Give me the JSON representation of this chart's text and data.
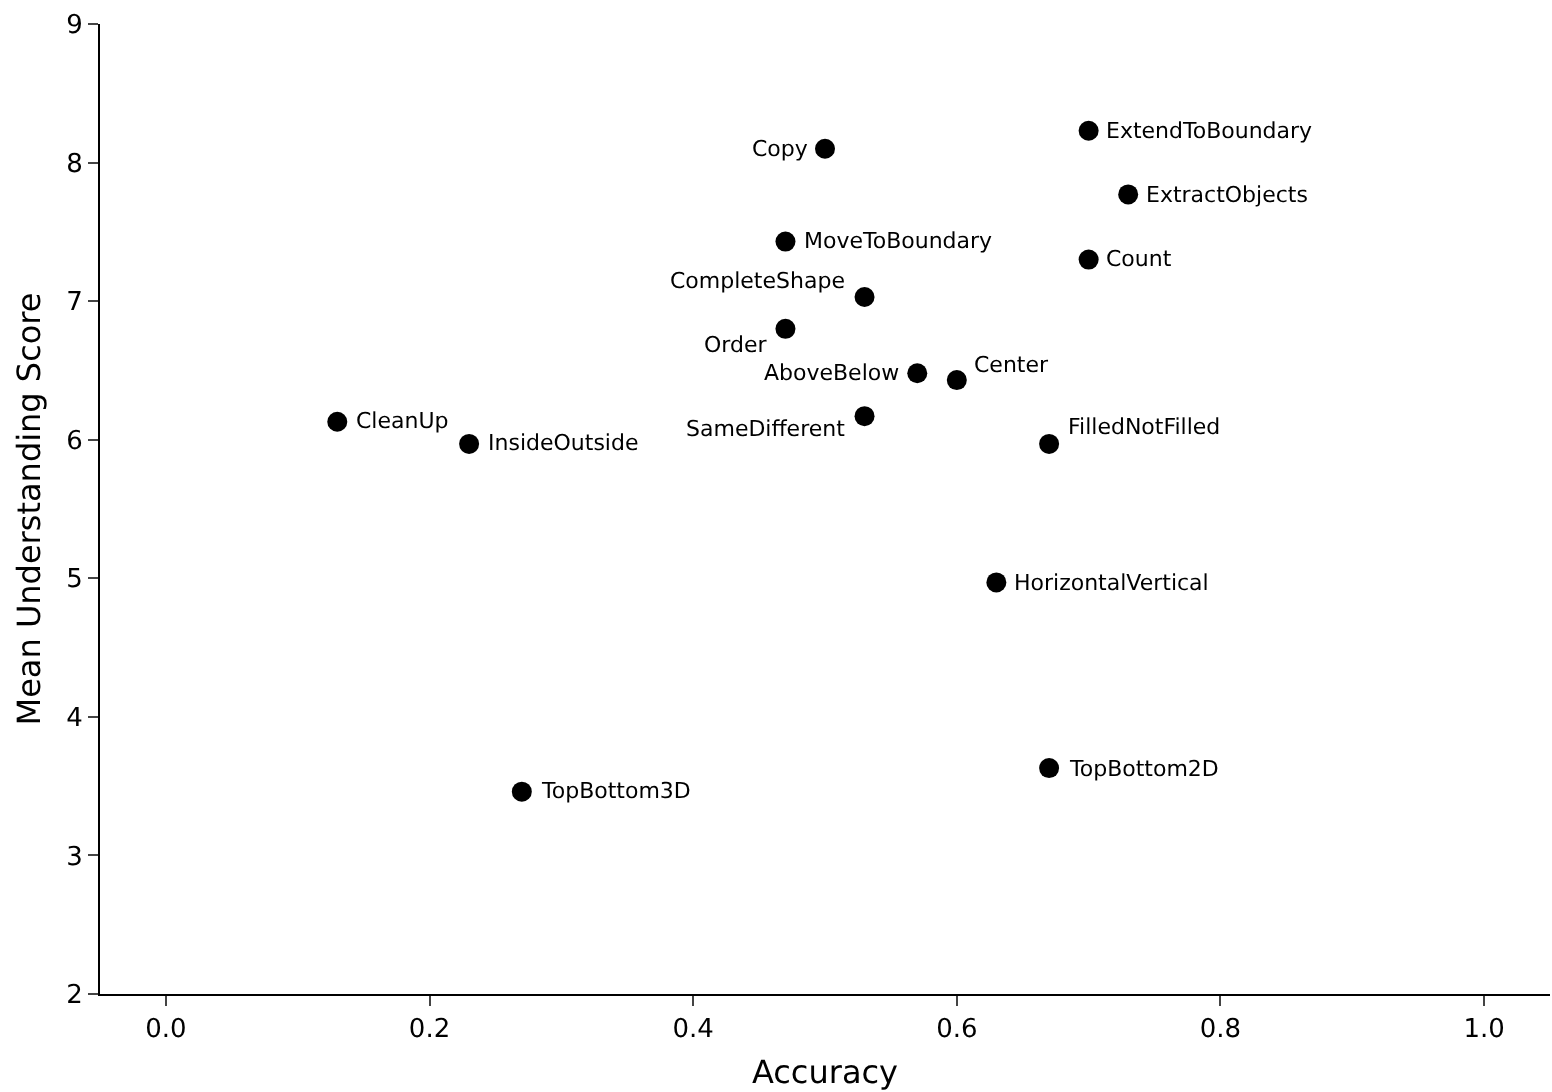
{
  "chart_data": {
    "type": "scatter",
    "xlabel": "Accuracy",
    "ylabel": "Mean Understanding Score",
    "x": [
      0.13,
      0.23,
      0.27,
      0.5,
      0.47,
      0.53,
      0.47,
      0.57,
      0.6,
      0.53,
      0.7,
      0.73,
      0.7,
      0.67,
      0.63,
      0.67
    ],
    "values": [
      6.13,
      5.97,
      3.46,
      8.1,
      7.43,
      7.03,
      6.8,
      6.48,
      6.43,
      6.17,
      8.23,
      7.77,
      7.3,
      5.97,
      4.97,
      3.63
    ],
    "color": "#000000",
    "marker": "circle",
    "grid": false,
    "xlim": [
      -0.05,
      1.05
    ],
    "xticks": [
      {
        "value": 0,
        "label": "0.0"
      },
      {
        "value": 0.2,
        "label": "0.2"
      },
      {
        "value": 0.4,
        "label": "0.4"
      },
      {
        "value": 0.6,
        "label": "0.6"
      },
      {
        "value": 0.8,
        "label": "0.8"
      },
      {
        "value": 1,
        "label": "1.0"
      }
    ],
    "ylim": [
      2,
      9
    ],
    "yticks": [
      2,
      3,
      4,
      5,
      6,
      7,
      8,
      9
    ],
    "annotations": [
      {
        "text": "CleanUp",
        "x": 0.13,
        "y": 6.13
      },
      {
        "text": "InsideOutside",
        "x": 0.23,
        "y": 5.97
      },
      {
        "text": "TopBottom3D",
        "x": 0.27,
        "y": 3.46
      },
      {
        "text": "Copy",
        "x": 0.5,
        "y": 8.1
      },
      {
        "text": "MoveToBoundary",
        "x": 0.47,
        "y": 7.43
      },
      {
        "text": "CompleteShape",
        "x": 0.53,
        "y": 7.03
      },
      {
        "text": "Order",
        "x": 0.47,
        "y": 6.8
      },
      {
        "text": "AboveBelow",
        "x": 0.57,
        "y": 6.48
      },
      {
        "text": "Center",
        "x": 0.6,
        "y": 6.43
      },
      {
        "text": "SameDifferent",
        "x": 0.53,
        "y": 6.17
      },
      {
        "text": "ExtendToBoundary",
        "x": 0.7,
        "y": 8.23
      },
      {
        "text": "ExtractObjects",
        "x": 0.73,
        "y": 7.77
      },
      {
        "text": "Count",
        "x": 0.7,
        "y": 7.3
      },
      {
        "text": "FilledNotFilled",
        "x": 0.67,
        "y": 5.97
      },
      {
        "text": "HorizontalVertical",
        "x": 0.63,
        "y": 4.97
      },
      {
        "text": "TopBottom2D",
        "x": 0.67,
        "y": 3.63
      }
    ]
  }
}
